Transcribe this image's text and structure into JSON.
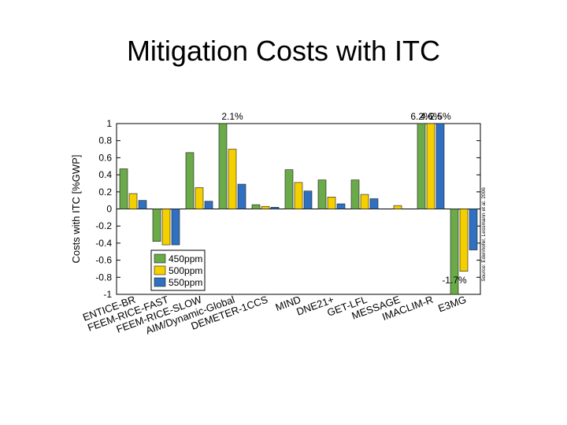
{
  "slide": {
    "title": "Mitigation Costs with ITC",
    "source_note": "Source: Edenhofer, Lessmann et al. 2006"
  },
  "chart_data": {
    "type": "bar",
    "ylabel": "Costs with ITC [%GWP]",
    "ylim": [
      -1,
      1
    ],
    "yticks": [
      1,
      0.8,
      0.6,
      0.4,
      0.2,
      0,
      -0.2,
      -0.4,
      -0.6,
      -0.8,
      -1
    ],
    "categories": [
      "ENTICE-BR",
      "FEEM-RICE-FAST",
      "FEEM-RICE-SLOW",
      "AIM/Dynamic-Global",
      "DEMETER-1CCS",
      "MIND",
      "DNE21+",
      "GET-LFL",
      "MESSAGE",
      "IMACLIM-R",
      "E3MG"
    ],
    "series": [
      {
        "name": "450ppm",
        "color": "#6aaa48",
        "values": [
          0.47,
          -0.38,
          0.66,
          1.0,
          0.05,
          0.46,
          0.34,
          0.34,
          null,
          1.0,
          -1.0
        ]
      },
      {
        "name": "500ppm",
        "color": "#f4d000",
        "values": [
          0.18,
          -0.42,
          0.25,
          0.7,
          0.03,
          0.31,
          0.14,
          0.17,
          0.04,
          1.0,
          -0.73
        ]
      },
      {
        "name": "550ppm",
        "color": "#3070c0",
        "values": [
          0.1,
          -0.42,
          0.09,
          0.29,
          0.02,
          0.21,
          0.06,
          0.12,
          null,
          1.0,
          -0.48
        ]
      }
    ],
    "annotations": [
      {
        "text": "2.1%",
        "category": "AIM/Dynamic-Global",
        "position": "top"
      },
      {
        "text": "6.2%",
        "category": "IMACLIM-R",
        "series": "450ppm",
        "position": "top"
      },
      {
        "text": "4.6%",
        "category": "IMACLIM-R",
        "series": "500ppm",
        "position": "top"
      },
      {
        "text": "2.5%",
        "category": "IMACLIM-R",
        "series": "550ppm",
        "position": "top"
      },
      {
        "text": "-1.7%",
        "category": "E3MG",
        "series": "450ppm",
        "position": "bottom"
      }
    ],
    "legend_position": "bottom-left",
    "grid": false
  }
}
